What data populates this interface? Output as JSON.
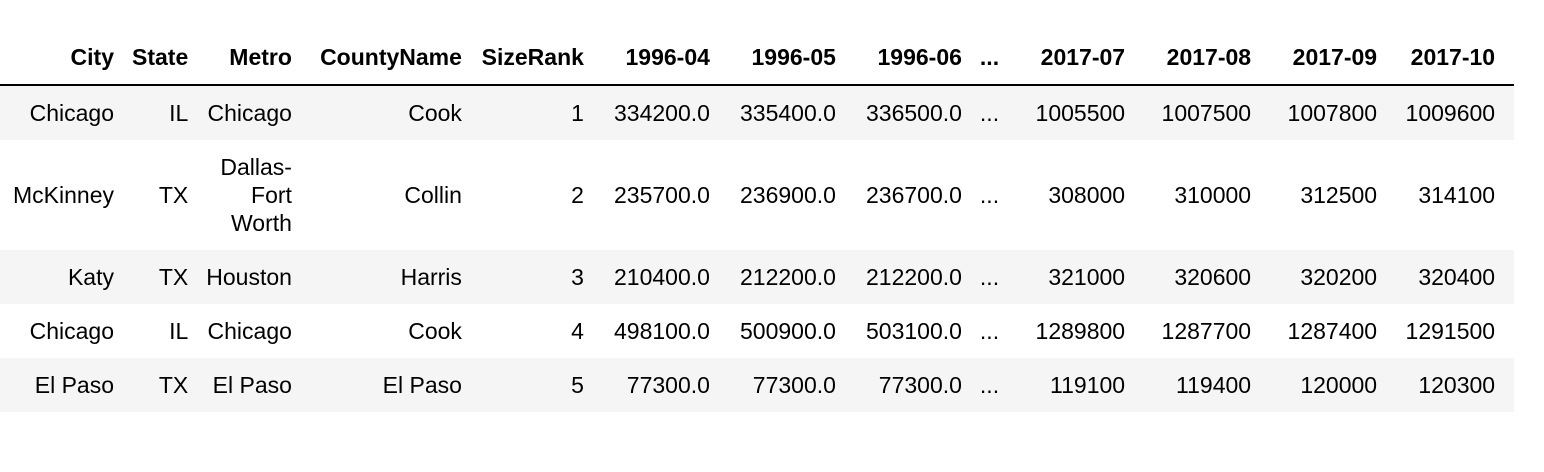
{
  "table": {
    "columns": [
      "City",
      "State",
      "Metro",
      "CountyName",
      "SizeRank",
      "1996-04",
      "1996-05",
      "1996-06",
      "...",
      "2017-07",
      "2017-08",
      "2017-09",
      "2017-10"
    ],
    "rows": [
      {
        "city": "Chicago",
        "state": "IL",
        "metro": [
          "Chicago"
        ],
        "county": "Cook",
        "sizerank": "1",
        "v1": "334200.0",
        "v2": "335400.0",
        "v3": "336500.0",
        "ellipsis": "...",
        "w1": "1005500",
        "w2": "1007500",
        "w3": "1007800",
        "w4": "1009600"
      },
      {
        "city": "McKinney",
        "state": "TX",
        "metro": [
          "Dallas-",
          "Fort",
          "Worth"
        ],
        "county": "Collin",
        "sizerank": "2",
        "v1": "235700.0",
        "v2": "236900.0",
        "v3": "236700.0",
        "ellipsis": "...",
        "w1": "308000",
        "w2": "310000",
        "w3": "312500",
        "w4": "314100"
      },
      {
        "city": "Katy",
        "state": "TX",
        "metro": [
          "Houston"
        ],
        "county": "Harris",
        "sizerank": "3",
        "v1": "210400.0",
        "v2": "212200.0",
        "v3": "212200.0",
        "ellipsis": "...",
        "w1": "321000",
        "w2": "320600",
        "w3": "320200",
        "w4": "320400"
      },
      {
        "city": "Chicago",
        "state": "IL",
        "metro": [
          "Chicago"
        ],
        "county": "Cook",
        "sizerank": "4",
        "v1": "498100.0",
        "v2": "500900.0",
        "v3": "503100.0",
        "ellipsis": "...",
        "w1": "1289800",
        "w2": "1287700",
        "w3": "1287400",
        "w4": "1291500"
      },
      {
        "city": "El Paso",
        "state": "TX",
        "metro": [
          "El Paso"
        ],
        "county": "El Paso",
        "sizerank": "5",
        "v1": "77300.0",
        "v2": "77300.0",
        "v3": "77300.0",
        "ellipsis": "...",
        "w1": "119100",
        "w2": "119400",
        "w3": "120000",
        "w4": "120300"
      }
    ]
  }
}
